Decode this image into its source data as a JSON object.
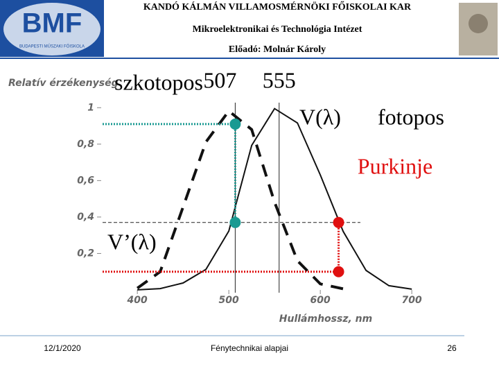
{
  "header": {
    "institution": "KANDÓ KÁLMÁN VILLAMOSMÉRNÖKI FŐISKOLAI KAR",
    "institute": "Mikroelektronikai és Technológia Intézet",
    "lecturer": "Előadó: Molnár Károly",
    "logo_text": "BMF",
    "logo_subtext": "BUDAPESTI MŰSZAKI FŐISKOLA"
  },
  "chart_data": {
    "type": "line",
    "y_label": "Relatív érzékenység",
    "x_label": "Hullámhossz, nm",
    "x": [
      400,
      425,
      450,
      475,
      500,
      525,
      550,
      575,
      600,
      625,
      650,
      675,
      700
    ],
    "series": [
      {
        "name": "V(λ)",
        "color": "#111111",
        "style": "solid",
        "values": [
          0.0004,
          0.0073,
          0.038,
          0.1126,
          0.323,
          0.7932,
          0.995,
          0.9163,
          0.631,
          0.321,
          0.107,
          0.0232,
          0.0041
        ]
      },
      {
        "name": "V’(λ)",
        "color": "#111111",
        "style": "dashed",
        "values": [
          0.0093,
          0.1,
          0.455,
          0.812,
          0.982,
          0.88,
          0.481,
          0.16,
          0.0332,
          0.006,
          null,
          null,
          null
        ]
      }
    ],
    "xlim": [
      362,
      712
    ],
    "ylim": [
      0,
      1.1
    ],
    "xticks": [
      400,
      500,
      600,
      700
    ],
    "yticks": [
      {
        "value": 0.2,
        "label": "0,2"
      },
      {
        "value": 0.4,
        "label": "0,4"
      },
      {
        "value": 0.6,
        "label": "0,6"
      },
      {
        "value": 0.8,
        "label": "0,8"
      },
      1
    ],
    "peak_lines": [
      507,
      555
    ],
    "scotopic_label": "szkotopos",
    "photopic_label": "fotopos",
    "purkinje_label": "Purkinje",
    "markers": [
      {
        "x": 507,
        "y": 0.91,
        "color": "#1a9a92"
      },
      {
        "x": 507,
        "y": 0.37,
        "color": "#1a9a92"
      },
      {
        "x": 620,
        "y": 0.37,
        "color": "#e01010"
      },
      {
        "x": 620,
        "y": 0.1,
        "color": "#e01010"
      }
    ]
  },
  "footer": {
    "date": "12/1/2020",
    "title": "Fénytechnikai alapjai",
    "page": "26"
  }
}
